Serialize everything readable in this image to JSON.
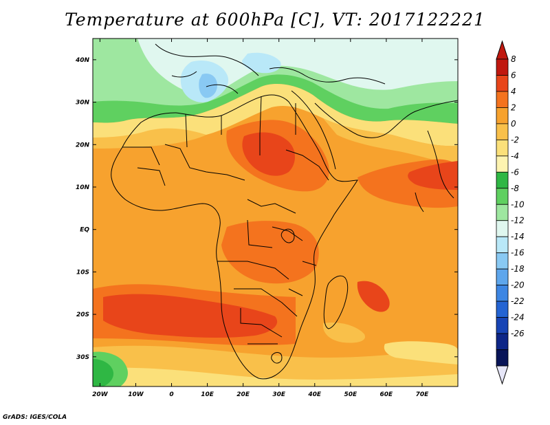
{
  "title": "Temperature at 600hPa [C], VT: 2017122221",
  "credit": "GrADS: IGES/COLA",
  "map": {
    "lon_range": [
      -22,
      80
    ],
    "lat_range": [
      -37,
      45
    ],
    "lon_ticks": [
      {
        "value": -20,
        "label": "20W"
      },
      {
        "value": -10,
        "label": "10W"
      },
      {
        "value": 0,
        "label": "0"
      },
      {
        "value": 10,
        "label": "10E"
      },
      {
        "value": 20,
        "label": "20E"
      },
      {
        "value": 30,
        "label": "30E"
      },
      {
        "value": 40,
        "label": "40E"
      },
      {
        "value": 50,
        "label": "50E"
      },
      {
        "value": 60,
        "label": "60E"
      },
      {
        "value": 70,
        "label": "70E"
      }
    ],
    "lat_ticks": [
      {
        "value": 40,
        "label": "40N"
      },
      {
        "value": 30,
        "label": "30N"
      },
      {
        "value": 20,
        "label": "20N"
      },
      {
        "value": 10,
        "label": "10N"
      },
      {
        "value": 0,
        "label": "EQ"
      },
      {
        "value": -10,
        "label": "10S"
      },
      {
        "value": -20,
        "label": "20S"
      },
      {
        "value": -30,
        "label": "30S"
      }
    ]
  },
  "colorbar": {
    "levels": [
      "8",
      "6",
      "4",
      "2",
      "0",
      "-2",
      "-4",
      "-6",
      "-8",
      "-10",
      "-12",
      "-14",
      "-16",
      "-18",
      "-20",
      "-22",
      "-24",
      "-26"
    ],
    "colors": [
      "#c0180f",
      "#e8451a",
      "#f4731e",
      "#f7a22e",
      "#f9c04a",
      "#fbe07a",
      "#fdf3b0",
      "#2fb744",
      "#5fd060",
      "#9ee7a0",
      "#e0f7ef",
      "#b9e8f8",
      "#89c9f3",
      "#5ea6ec",
      "#3d86e3",
      "#2464d3",
      "#1744b5",
      "#0d2687",
      "#081458"
    ],
    "top_arrow_color": "#c0180f",
    "bottom_arrow_color": "#e6e6f8"
  }
}
